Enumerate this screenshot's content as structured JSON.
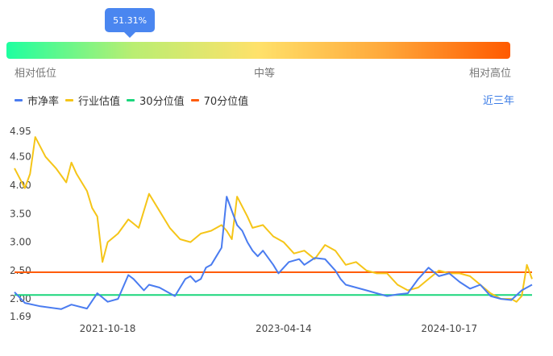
{
  "gauge": {
    "percentile_label": "51.31%",
    "percentile": 0.5131,
    "low_label": "相对低位",
    "mid_label": "中等",
    "high_label": "相对高位",
    "gradient_colors": [
      "#1effa0",
      "#b9ee72",
      "#ffe16a",
      "#ffa83a",
      "#ff5a00"
    ]
  },
  "legend": {
    "items": [
      {
        "label": "市净率",
        "color": "#4a7cf0"
      },
      {
        "label": "行业估值",
        "color": "#f5c518"
      },
      {
        "label": "30分位值",
        "color": "#1ad67c"
      },
      {
        "label": "70分位值",
        "color": "#ff5c0a"
      }
    ],
    "period_label": "近三年"
  },
  "chart_data": {
    "type": "line",
    "ylim": [
      1.69,
      4.95
    ],
    "yticks": [
      "4.95",
      "4.50",
      "4.00",
      "3.50",
      "3.00",
      "2.50",
      "2.00",
      "1.69"
    ],
    "ytick_values": [
      4.95,
      4.5,
      4.0,
      3.5,
      3.0,
      2.5,
      2.0,
      1.69
    ],
    "xticks": [
      "2021-10-18",
      "2023-04-14",
      "2024-10-17"
    ],
    "xtick_positions": [
      0.18,
      0.52,
      0.84
    ],
    "reference_lines": [
      {
        "label": "30分位值",
        "value": 2.07,
        "color": "#1ad67c"
      },
      {
        "label": "70分位值",
        "value": 2.47,
        "color": "#ff5c0a"
      }
    ],
    "series": [
      {
        "name": "市净率",
        "color": "#4a7cf0",
        "x": [
          0.0,
          0.02,
          0.05,
          0.09,
          0.11,
          0.14,
          0.16,
          0.18,
          0.2,
          0.22,
          0.23,
          0.25,
          0.26,
          0.28,
          0.3,
          0.31,
          0.33,
          0.34,
          0.35,
          0.36,
          0.37,
          0.38,
          0.39,
          0.4,
          0.41,
          0.42,
          0.43,
          0.44,
          0.45,
          0.46,
          0.47,
          0.48,
          0.5,
          0.51,
          0.53,
          0.55,
          0.56,
          0.58,
          0.6,
          0.62,
          0.63,
          0.64,
          0.66,
          0.68,
          0.7,
          0.72,
          0.74,
          0.76,
          0.78,
          0.8,
          0.82,
          0.84,
          0.86,
          0.88,
          0.9,
          0.92,
          0.94,
          0.96,
          0.98,
          1.0
        ],
        "values": [
          2.12,
          1.93,
          1.87,
          1.82,
          1.9,
          1.83,
          2.1,
          1.95,
          2.0,
          2.42,
          2.35,
          2.15,
          2.25,
          2.2,
          2.1,
          2.05,
          2.35,
          2.4,
          2.3,
          2.35,
          2.55,
          2.6,
          2.75,
          2.9,
          3.8,
          3.55,
          3.3,
          3.2,
          3.0,
          2.85,
          2.75,
          2.85,
          2.6,
          2.45,
          2.65,
          2.7,
          2.6,
          2.72,
          2.7,
          2.5,
          2.35,
          2.25,
          2.2,
          2.15,
          2.1,
          2.05,
          2.08,
          2.1,
          2.35,
          2.55,
          2.4,
          2.45,
          2.3,
          2.18,
          2.25,
          2.05,
          2.0,
          1.98,
          2.15,
          2.25
        ]
      },
      {
        "name": "行业估值",
        "color": "#f5c518",
        "x": [
          0.0,
          0.02,
          0.03,
          0.04,
          0.06,
          0.08,
          0.1,
          0.11,
          0.12,
          0.14,
          0.15,
          0.16,
          0.17,
          0.18,
          0.2,
          0.22,
          0.24,
          0.26,
          0.28,
          0.3,
          0.32,
          0.34,
          0.36,
          0.38,
          0.4,
          0.41,
          0.42,
          0.43,
          0.45,
          0.46,
          0.48,
          0.5,
          0.52,
          0.54,
          0.56,
          0.58,
          0.6,
          0.62,
          0.64,
          0.66,
          0.68,
          0.7,
          0.72,
          0.74,
          0.76,
          0.78,
          0.8,
          0.82,
          0.84,
          0.86,
          0.88,
          0.9,
          0.92,
          0.94,
          0.96,
          0.97,
          0.98,
          0.99,
          1.0
        ],
        "values": [
          4.3,
          3.95,
          4.2,
          4.85,
          4.5,
          4.3,
          4.05,
          4.4,
          4.2,
          3.9,
          3.6,
          3.45,
          2.65,
          3.0,
          3.15,
          3.4,
          3.25,
          3.85,
          3.55,
          3.25,
          3.05,
          3.0,
          3.15,
          3.2,
          3.3,
          3.2,
          3.05,
          3.8,
          3.45,
          3.25,
          3.3,
          3.1,
          3.0,
          2.8,
          2.85,
          2.7,
          2.95,
          2.85,
          2.6,
          2.65,
          2.5,
          2.45,
          2.45,
          2.25,
          2.15,
          2.2,
          2.35,
          2.5,
          2.45,
          2.45,
          2.4,
          2.25,
          2.1,
          2.0,
          2.0,
          1.95,
          2.05,
          2.6,
          2.35
        ]
      }
    ]
  }
}
